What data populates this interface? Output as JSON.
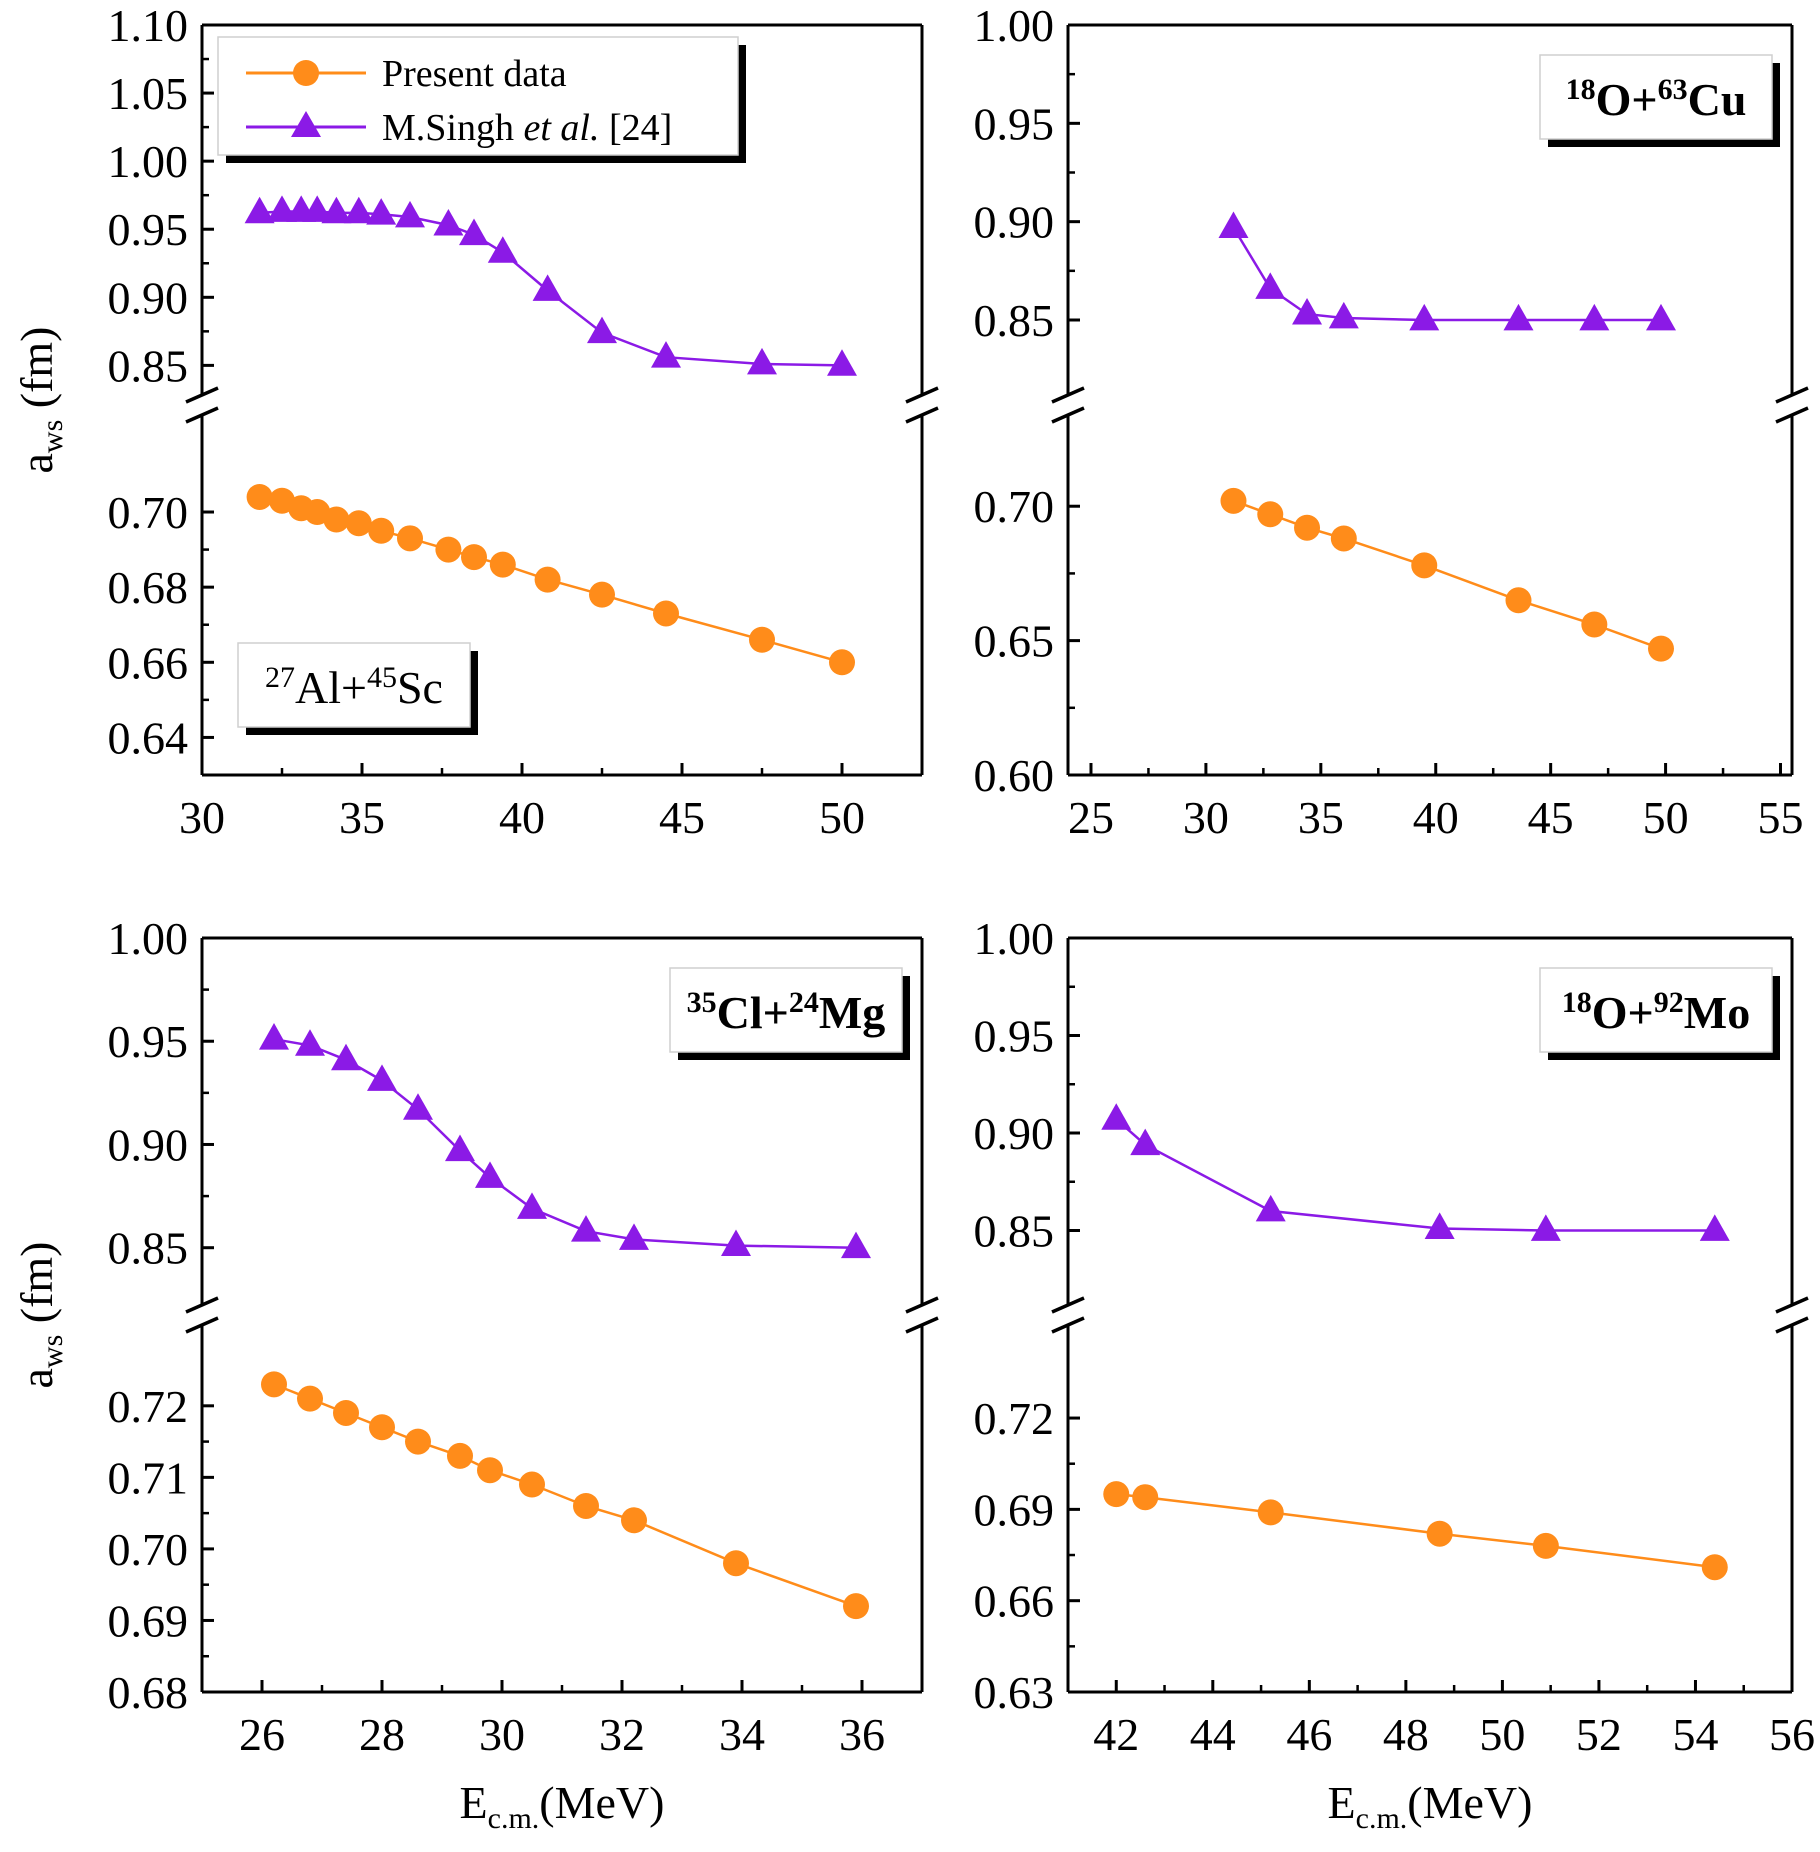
{
  "series_styles": {
    "present": {
      "color": "#ff8c1a",
      "marker": "circle"
    },
    "singh": {
      "color": "#8b1ae6",
      "marker": "triangle"
    }
  },
  "legend": {
    "present_label": "Present data",
    "singh_label_main": "M.Singh ",
    "singh_label_etal": "et al.",
    "singh_label_ref": " [24]"
  },
  "axis_label_y_base": "a",
  "axis_label_y_sub": "ws",
  "axis_label_y_unit": " (fm)",
  "axis_label_x_base": "E",
  "axis_label_x_sub": "c.m.",
  "axis_label_x_unit": "(MeV)",
  "chart_data": [
    {
      "type": "scatter",
      "reaction": {
        "a1": "27",
        "s1": "Al+",
        "a2": "45",
        "s2": "Sc"
      },
      "label_bold": false,
      "label_position": "bottom-left",
      "legend_shown": true,
      "legend_position": "top-left",
      "xlabel": "",
      "ylabel": "a_ws (fm)",
      "xlim": [
        30,
        52.5
      ],
      "xticks": [
        30,
        35,
        40,
        45,
        50
      ],
      "ylim_lower": [
        0.63,
        0.7205
      ],
      "yticks_lower": [
        0.64,
        0.66,
        0.68,
        0.7
      ],
      "ylim_upper": [
        0.84,
        1.1
      ],
      "yticks_upper": [
        0.85,
        0.9,
        0.95,
        1.0,
        1.05,
        1.1
      ],
      "series": [
        {
          "name": "Present data",
          "style": "present",
          "x": [
            31.8,
            32.5,
            33.1,
            33.6,
            34.2,
            34.9,
            35.6,
            36.5,
            37.7,
            38.5,
            39.4,
            40.8,
            42.5,
            44.5,
            47.5,
            50.0
          ],
          "y": [
            0.704,
            0.703,
            0.701,
            0.7,
            0.698,
            0.697,
            0.695,
            0.693,
            0.69,
            0.688,
            0.686,
            0.682,
            0.678,
            0.673,
            0.666,
            0.66
          ]
        },
        {
          "name": "M.Singh et al. [24]",
          "style": "singh",
          "x": [
            31.8,
            32.5,
            33.1,
            33.6,
            34.2,
            34.9,
            35.6,
            36.5,
            37.7,
            38.5,
            39.4,
            40.8,
            42.5,
            44.5,
            47.5,
            50.0
          ],
          "y": [
            0.962,
            0.963,
            0.963,
            0.963,
            0.962,
            0.962,
            0.961,
            0.959,
            0.953,
            0.946,
            0.933,
            0.905,
            0.874,
            0.856,
            0.851,
            0.85
          ]
        }
      ]
    },
    {
      "type": "scatter",
      "reaction": {
        "a1": "18",
        "s1": "O+",
        "a2": "63",
        "s2": "Cu"
      },
      "label_bold": true,
      "label_position": "top-right",
      "legend_shown": false,
      "xlabel": "",
      "ylabel": "",
      "xlim": [
        24,
        55.5
      ],
      "xticks": [
        25,
        30,
        35,
        40,
        45,
        50,
        55
      ],
      "ylim_lower": [
        0.6,
        0.7265
      ],
      "yticks_lower": [
        0.6,
        0.65,
        0.7
      ],
      "ylim_upper": [
        0.82,
        1.0
      ],
      "yticks_upper": [
        0.85,
        0.9,
        0.95,
        1.0
      ],
      "series": [
        {
          "name": "Present data",
          "style": "present",
          "x": [
            31.2,
            32.8,
            34.4,
            36.0,
            39.5,
            43.6,
            46.9,
            49.8
          ],
          "y": [
            0.702,
            0.697,
            0.692,
            0.688,
            0.678,
            0.665,
            0.656,
            0.647
          ]
        },
        {
          "name": "M.Singh et al. [24]",
          "style": "singh",
          "x": [
            31.2,
            32.8,
            34.4,
            36.0,
            39.5,
            43.6,
            46.9,
            49.8
          ],
          "y": [
            0.897,
            0.866,
            0.853,
            0.851,
            0.85,
            0.85,
            0.85,
            0.85
          ]
        }
      ]
    },
    {
      "type": "scatter",
      "reaction": {
        "a1": "35",
        "s1": "Cl+",
        "a2": "24",
        "s2": "Mg"
      },
      "label_bold": true,
      "label_position": "top-right",
      "legend_shown": false,
      "xlabel": "E_c.m.(MeV)",
      "ylabel": "a_ws (fm)",
      "xlim": [
        25,
        37
      ],
      "xticks": [
        26,
        28,
        30,
        32,
        34,
        36
      ],
      "ylim_lower": [
        0.68,
        0.7285
      ],
      "yticks_lower": [
        0.68,
        0.69,
        0.7,
        0.71,
        0.72
      ],
      "ylim_upper": [
        0.83,
        1.0
      ],
      "yticks_upper": [
        0.85,
        0.9,
        0.95,
        1.0
      ],
      "series": [
        {
          "name": "Present data",
          "style": "present",
          "x": [
            26.2,
            26.8,
            27.4,
            28.0,
            28.6,
            29.3,
            29.8,
            30.5,
            31.4,
            32.2,
            33.9,
            35.9
          ],
          "y": [
            0.723,
            0.721,
            0.719,
            0.717,
            0.715,
            0.713,
            0.711,
            0.709,
            0.706,
            0.704,
            0.698,
            0.692
          ]
        },
        {
          "name": "M.Singh et al. [24]",
          "style": "singh",
          "x": [
            26.2,
            26.8,
            27.4,
            28.0,
            28.6,
            29.3,
            29.8,
            30.5,
            31.4,
            32.2,
            33.9,
            35.9
          ],
          "y": [
            0.951,
            0.948,
            0.941,
            0.931,
            0.917,
            0.897,
            0.884,
            0.869,
            0.858,
            0.854,
            0.851,
            0.85
          ]
        }
      ]
    },
    {
      "type": "scatter",
      "reaction": {
        "a1": "18",
        "s1": "O+",
        "a2": "92",
        "s2": "Mo"
      },
      "label_bold": true,
      "label_position": "top-right",
      "legend_shown": false,
      "xlabel": "E_c.m.(MeV)",
      "ylabel": "",
      "xlim": [
        41,
        56
      ],
      "xticks": [
        42,
        44,
        46,
        48,
        50,
        52,
        54,
        56
      ],
      "ylim_lower": [
        0.63,
        0.744
      ],
      "yticks_lower": [
        0.63,
        0.66,
        0.69,
        0.72
      ],
      "ylim_upper": [
        0.82,
        1.0
      ],
      "yticks_upper": [
        0.85,
        0.9,
        0.95,
        1.0
      ],
      "series": [
        {
          "name": "Present data",
          "style": "present",
          "x": [
            42.0,
            42.6,
            45.2,
            48.7,
            50.9,
            54.4
          ],
          "y": [
            0.695,
            0.694,
            0.689,
            0.682,
            0.678,
            0.671
          ]
        },
        {
          "name": "M.Singh et al. [24]",
          "style": "singh",
          "x": [
            42.0,
            42.6,
            45.2,
            48.7,
            50.9,
            54.4
          ],
          "y": [
            0.907,
            0.894,
            0.86,
            0.851,
            0.85,
            0.85
          ]
        }
      ]
    }
  ]
}
